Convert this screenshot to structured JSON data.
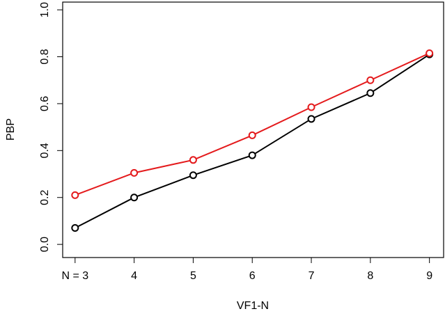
{
  "chart_data": {
    "type": "line",
    "x_label": "VF1-N",
    "y_label": "PBP",
    "x": [
      3,
      4,
      5,
      6,
      7,
      8,
      9
    ],
    "series": [
      {
        "color": "#000000",
        "values": [
          0.07,
          0.2,
          0.295,
          0.38,
          0.535,
          0.645,
          0.81
        ]
      },
      {
        "color": "#e41a1c",
        "values": [
          0.21,
          0.305,
          0.36,
          0.465,
          0.585,
          0.7,
          0.815
        ]
      }
    ],
    "xlim": [
      2.79,
      9.24
    ],
    "xticks": [
      {
        "value": 3,
        "label": "N = 3"
      },
      4,
      5,
      6,
      7,
      8,
      9
    ],
    "ylim": [
      -0.056,
      1.033
    ],
    "yticks": [
      {
        "value": 0,
        "label": "0.0"
      },
      0.2,
      0.4,
      0.6,
      0.8,
      {
        "value": 1,
        "label": "1.0"
      }
    ]
  }
}
